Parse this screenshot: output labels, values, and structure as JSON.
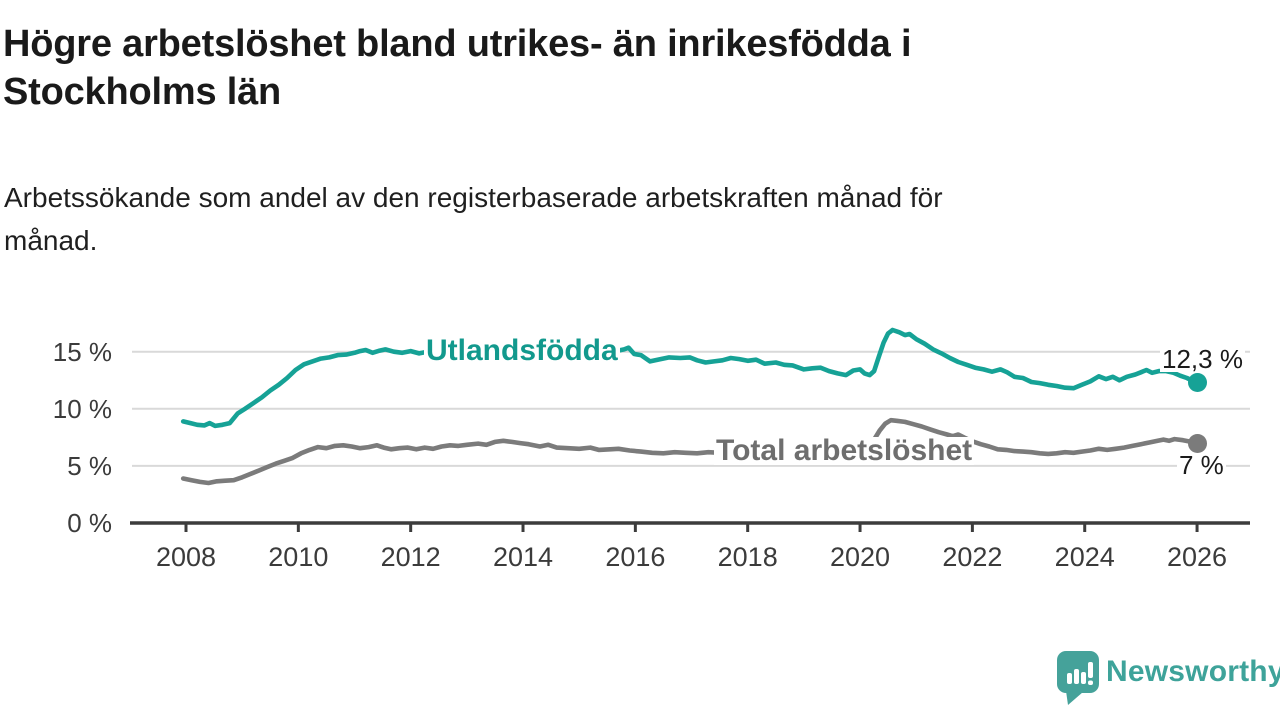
{
  "header": {
    "title": "Högre arbetslöshet bland utrikes- än inrikesfödda i Stockholms län",
    "title_lines": [
      "Högre arbetslöshet bland utrikes- än inrikesfödda i",
      "Stockholms län"
    ],
    "subtitle": "Arbetssökande som andel av den registerbaserade arbetskraften månad för månad.",
    "subtitle_lines": [
      "Arbetssökande som andel av den registerbaserade arbetskraften månad för",
      "månad."
    ]
  },
  "chart_data": {
    "type": "line",
    "title": "Högre arbetslöshet bland utrikes- än inrikesfödda i Stockholms län",
    "subtitle": "Arbetssökande som andel av den registerbaserade arbetskraften månad för månad.",
    "unit": "%",
    "x_axis": {
      "range": [
        2007.6,
        2026.9
      ],
      "ticks": [
        2008,
        2010,
        2012,
        2014,
        2016,
        2018,
        2020,
        2022,
        2024,
        2026
      ],
      "tick_labels": [
        "2008",
        "2010",
        "2012",
        "2014",
        "2016",
        "2018",
        "2020",
        "2022",
        "2024",
        "2026"
      ]
    },
    "y_axis": {
      "range": [
        0,
        17.5
      ],
      "ticks": [
        15,
        10,
        5,
        0
      ],
      "tick_labels": [
        "15 %",
        "10 %",
        "5 %",
        "0 %"
      ],
      "gridlines": [
        5,
        10,
        15
      ],
      "grid_on": true
    },
    "style": {
      "grid_color": "#d9d9d9",
      "axis_color": "#3c3c3c",
      "value_label_color": "#1b1b1b"
    },
    "series": [
      {
        "name": "Utlandsfödda",
        "label": "Utlandsfödda",
        "color": "#16a296",
        "label_color": "#12998d",
        "end_value": 12.3,
        "end_label": "12,3 %",
        "points": [
          [
            2007.95,
            8.9
          ],
          [
            2008.08,
            8.75
          ],
          [
            2008.2,
            8.6
          ],
          [
            2008.33,
            8.55
          ],
          [
            2008.42,
            8.75
          ],
          [
            2008.52,
            8.5
          ],
          [
            2008.65,
            8.6
          ],
          [
            2008.78,
            8.75
          ],
          [
            2008.92,
            9.6
          ],
          [
            2009.05,
            10.0
          ],
          [
            2009.2,
            10.5
          ],
          [
            2009.35,
            11.0
          ],
          [
            2009.5,
            11.6
          ],
          [
            2009.65,
            12.1
          ],
          [
            2009.8,
            12.7
          ],
          [
            2009.95,
            13.4
          ],
          [
            2010.1,
            13.9
          ],
          [
            2010.25,
            14.15
          ],
          [
            2010.4,
            14.4
          ],
          [
            2010.55,
            14.5
          ],
          [
            2010.7,
            14.7
          ],
          [
            2010.85,
            14.75
          ],
          [
            2011.0,
            14.9
          ],
          [
            2011.1,
            15.05
          ],
          [
            2011.2,
            15.15
          ],
          [
            2011.32,
            14.9
          ],
          [
            2011.45,
            15.1
          ],
          [
            2011.55,
            15.2
          ],
          [
            2011.7,
            15.0
          ],
          [
            2011.85,
            14.9
          ],
          [
            2012.0,
            15.05
          ],
          [
            2012.15,
            14.85
          ],
          [
            2012.3,
            15.0
          ],
          [
            2012.5,
            15.05
          ],
          [
            2012.75,
            15.1
          ],
          [
            2013.0,
            15.05
          ],
          [
            2013.25,
            15.15
          ],
          [
            2013.5,
            15.2
          ],
          [
            2013.75,
            15.1
          ],
          [
            2014.0,
            15.15
          ],
          [
            2014.25,
            15.05
          ],
          [
            2014.5,
            15.0
          ],
          [
            2014.75,
            15.05
          ],
          [
            2015.0,
            15.0
          ],
          [
            2015.25,
            15.05
          ],
          [
            2015.5,
            15.1
          ],
          [
            2015.65,
            15.05
          ],
          [
            2015.8,
            15.2
          ],
          [
            2015.88,
            15.35
          ],
          [
            2015.98,
            14.8
          ],
          [
            2016.1,
            14.7
          ],
          [
            2016.26,
            14.15
          ],
          [
            2016.45,
            14.35
          ],
          [
            2016.6,
            14.5
          ],
          [
            2016.8,
            14.45
          ],
          [
            2016.97,
            14.5
          ],
          [
            2017.1,
            14.25
          ],
          [
            2017.25,
            14.05
          ],
          [
            2017.4,
            14.15
          ],
          [
            2017.55,
            14.25
          ],
          [
            2017.7,
            14.45
          ],
          [
            2017.85,
            14.35
          ],
          [
            2018.0,
            14.2
          ],
          [
            2018.15,
            14.3
          ],
          [
            2018.3,
            13.95
          ],
          [
            2018.5,
            14.05
          ],
          [
            2018.65,
            13.85
          ],
          [
            2018.8,
            13.8
          ],
          [
            2019.0,
            13.45
          ],
          [
            2019.15,
            13.55
          ],
          [
            2019.3,
            13.6
          ],
          [
            2019.45,
            13.3
          ],
          [
            2019.6,
            13.1
          ],
          [
            2019.75,
            12.95
          ],
          [
            2019.88,
            13.35
          ],
          [
            2020.0,
            13.45
          ],
          [
            2020.08,
            13.1
          ],
          [
            2020.17,
            12.95
          ],
          [
            2020.25,
            13.3
          ],
          [
            2020.33,
            14.5
          ],
          [
            2020.42,
            15.8
          ],
          [
            2020.5,
            16.6
          ],
          [
            2020.58,
            16.9
          ],
          [
            2020.7,
            16.7
          ],
          [
            2020.8,
            16.45
          ],
          [
            2020.88,
            16.55
          ],
          [
            2021.0,
            16.1
          ],
          [
            2021.15,
            15.7
          ],
          [
            2021.3,
            15.2
          ],
          [
            2021.45,
            14.85
          ],
          [
            2021.6,
            14.45
          ],
          [
            2021.75,
            14.1
          ],
          [
            2021.9,
            13.85
          ],
          [
            2022.05,
            13.6
          ],
          [
            2022.2,
            13.45
          ],
          [
            2022.35,
            13.25
          ],
          [
            2022.5,
            13.45
          ],
          [
            2022.62,
            13.2
          ],
          [
            2022.75,
            12.8
          ],
          [
            2022.9,
            12.7
          ],
          [
            2023.05,
            12.35
          ],
          [
            2023.2,
            12.25
          ],
          [
            2023.35,
            12.1
          ],
          [
            2023.5,
            12.0
          ],
          [
            2023.65,
            11.85
          ],
          [
            2023.8,
            11.8
          ],
          [
            2023.95,
            12.1
          ],
          [
            2024.1,
            12.4
          ],
          [
            2024.25,
            12.85
          ],
          [
            2024.38,
            12.6
          ],
          [
            2024.5,
            12.8
          ],
          [
            2024.62,
            12.5
          ],
          [
            2024.75,
            12.8
          ],
          [
            2024.9,
            13.0
          ],
          [
            2025.0,
            13.2
          ],
          [
            2025.1,
            13.4
          ],
          [
            2025.2,
            13.15
          ],
          [
            2025.32,
            13.3
          ],
          [
            2025.45,
            13.3
          ],
          [
            2025.58,
            13.15
          ],
          [
            2025.7,
            12.9
          ],
          [
            2025.82,
            12.7
          ],
          [
            2025.92,
            12.45
          ],
          [
            2026.0,
            12.3
          ]
        ]
      },
      {
        "name": "Total arbetslöshet",
        "label": "Total arbetslöshet",
        "color": "#7b7b7b",
        "label_color": "#6e6e6e",
        "end_value": 7.0,
        "end_label": "7 %",
        "points": [
          [
            2007.95,
            3.9
          ],
          [
            2008.1,
            3.75
          ],
          [
            2008.25,
            3.6
          ],
          [
            2008.4,
            3.5
          ],
          [
            2008.55,
            3.65
          ],
          [
            2008.7,
            3.7
          ],
          [
            2008.85,
            3.75
          ],
          [
            2009.0,
            4.0
          ],
          [
            2009.15,
            4.3
          ],
          [
            2009.3,
            4.6
          ],
          [
            2009.45,
            4.9
          ],
          [
            2009.6,
            5.2
          ],
          [
            2009.75,
            5.45
          ],
          [
            2009.9,
            5.7
          ],
          [
            2010.05,
            6.1
          ],
          [
            2010.2,
            6.4
          ],
          [
            2010.35,
            6.65
          ],
          [
            2010.5,
            6.55
          ],
          [
            2010.65,
            6.75
          ],
          [
            2010.8,
            6.8
          ],
          [
            2010.95,
            6.7
          ],
          [
            2011.1,
            6.55
          ],
          [
            2011.25,
            6.65
          ],
          [
            2011.4,
            6.8
          ],
          [
            2011.52,
            6.6
          ],
          [
            2011.65,
            6.45
          ],
          [
            2011.8,
            6.55
          ],
          [
            2011.95,
            6.6
          ],
          [
            2012.1,
            6.45
          ],
          [
            2012.25,
            6.6
          ],
          [
            2012.4,
            6.5
          ],
          [
            2012.55,
            6.7
          ],
          [
            2012.7,
            6.8
          ],
          [
            2012.85,
            6.75
          ],
          [
            2013.0,
            6.85
          ],
          [
            2013.2,
            6.95
          ],
          [
            2013.35,
            6.85
          ],
          [
            2013.5,
            7.1
          ],
          [
            2013.65,
            7.2
          ],
          [
            2013.8,
            7.1
          ],
          [
            2013.95,
            7.0
          ],
          [
            2014.1,
            6.9
          ],
          [
            2014.3,
            6.7
          ],
          [
            2014.45,
            6.85
          ],
          [
            2014.6,
            6.6
          ],
          [
            2014.8,
            6.55
          ],
          [
            2015.0,
            6.5
          ],
          [
            2015.2,
            6.6
          ],
          [
            2015.35,
            6.4
          ],
          [
            2015.55,
            6.45
          ],
          [
            2015.7,
            6.5
          ],
          [
            2015.9,
            6.35
          ],
          [
            2016.1,
            6.25
          ],
          [
            2016.3,
            6.15
          ],
          [
            2016.5,
            6.1
          ],
          [
            2016.7,
            6.2
          ],
          [
            2016.9,
            6.15
          ],
          [
            2017.1,
            6.1
          ],
          [
            2017.3,
            6.2
          ],
          [
            2017.5,
            6.15
          ],
          [
            2017.7,
            6.1
          ],
          [
            2017.9,
            6.15
          ],
          [
            2018.1,
            6.1
          ],
          [
            2018.3,
            6.05
          ],
          [
            2018.5,
            6.0
          ],
          [
            2018.7,
            6.0
          ],
          [
            2018.9,
            5.95
          ],
          [
            2019.1,
            6.0
          ],
          [
            2019.3,
            6.05
          ],
          [
            2019.5,
            6.05
          ],
          [
            2019.7,
            6.1
          ],
          [
            2019.9,
            6.2
          ],
          [
            2020.05,
            6.35
          ],
          [
            2020.15,
            6.6
          ],
          [
            2020.25,
            7.3
          ],
          [
            2020.35,
            8.1
          ],
          [
            2020.45,
            8.7
          ],
          [
            2020.55,
            9.0
          ],
          [
            2020.65,
            8.95
          ],
          [
            2020.8,
            8.85
          ],
          [
            2020.95,
            8.65
          ],
          [
            2021.1,
            8.45
          ],
          [
            2021.25,
            8.2
          ],
          [
            2021.4,
            7.95
          ],
          [
            2021.55,
            7.75
          ],
          [
            2021.65,
            7.6
          ],
          [
            2021.75,
            7.75
          ],
          [
            2021.85,
            7.5
          ],
          [
            2022.0,
            7.15
          ],
          [
            2022.15,
            6.9
          ],
          [
            2022.3,
            6.7
          ],
          [
            2022.45,
            6.45
          ],
          [
            2022.6,
            6.4
          ],
          [
            2022.75,
            6.3
          ],
          [
            2022.9,
            6.25
          ],
          [
            2023.05,
            6.2
          ],
          [
            2023.2,
            6.1
          ],
          [
            2023.35,
            6.05
          ],
          [
            2023.5,
            6.1
          ],
          [
            2023.65,
            6.2
          ],
          [
            2023.8,
            6.15
          ],
          [
            2023.95,
            6.25
          ],
          [
            2024.1,
            6.35
          ],
          [
            2024.25,
            6.5
          ],
          [
            2024.4,
            6.4
          ],
          [
            2024.55,
            6.5
          ],
          [
            2024.7,
            6.6
          ],
          [
            2024.85,
            6.75
          ],
          [
            2025.0,
            6.9
          ],
          [
            2025.15,
            7.05
          ],
          [
            2025.3,
            7.2
          ],
          [
            2025.4,
            7.3
          ],
          [
            2025.5,
            7.2
          ],
          [
            2025.6,
            7.35
          ],
          [
            2025.75,
            7.25
          ],
          [
            2025.9,
            7.1
          ],
          [
            2026.0,
            7.0
          ]
        ]
      }
    ]
  },
  "branding": {
    "logo_text": "Newsworthy",
    "logo_text_color": "#3ea39a",
    "icon_color": "#45a29a",
    "icon_name": "newsworthy-chart-bubble-icon"
  }
}
